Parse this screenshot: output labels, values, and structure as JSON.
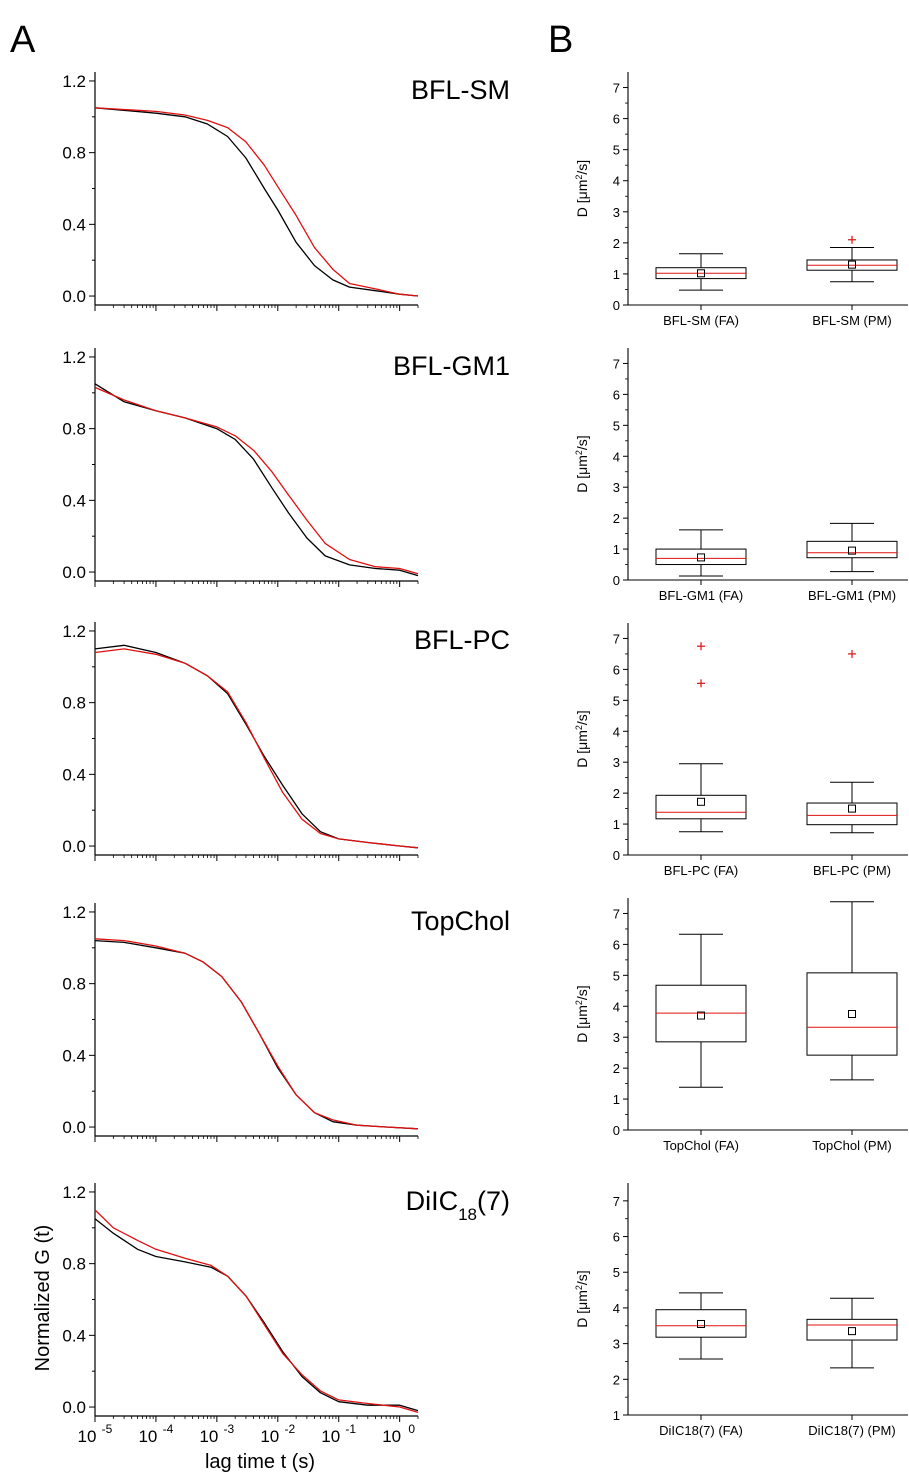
{
  "figure": {
    "panel_a_letter": "A",
    "panel_b_letter": "B",
    "colors": {
      "series_1": "#000000",
      "series_2": "#e01010",
      "median": "#e01010",
      "outlier": "#e01010"
    },
    "a_axes": {
      "ylabel": "Normalized G (t)",
      "xlabel": "lag time t (s)",
      "y_ticks": [
        "0.0",
        "0.4",
        "0.8",
        "1.2"
      ],
      "x_ticks": [
        {
          "base": "10",
          "exp": "-5"
        },
        {
          "base": "10",
          "exp": "-4"
        },
        {
          "base": "10",
          "exp": "-3"
        },
        {
          "base": "10",
          "exp": "-2"
        },
        {
          "base": "10",
          "exp": "-1"
        },
        {
          "base": "10",
          "exp": "0"
        }
      ]
    },
    "b_axes": {
      "ylabel_prefix": "D [μm",
      "ylabel_sup": "2",
      "ylabel_suffix": "/s]"
    }
  },
  "chart_data": [
    {
      "type": "line",
      "panel": "A",
      "label": "BFL-SM",
      "label_sub": "",
      "label_end": "",
      "xscale": "log",
      "xlim": [
        1e-05,
        2
      ],
      "ylim": [
        -0.05,
        1.25
      ],
      "series": [
        {
          "color": "#000000",
          "x": [
            1e-05,
            0.0001,
            0.0003,
            0.0007,
            0.0015,
            0.003,
            0.006,
            0.01,
            0.02,
            0.04,
            0.08,
            0.15,
            0.4,
            1,
            2
          ],
          "y": [
            1.05,
            1.02,
            1.0,
            0.96,
            0.89,
            0.77,
            0.6,
            0.48,
            0.3,
            0.17,
            0.09,
            0.05,
            0.03,
            0.01,
            0.0
          ]
        },
        {
          "color": "#e01010",
          "x": [
            1e-05,
            0.0001,
            0.0003,
            0.0007,
            0.0015,
            0.003,
            0.006,
            0.01,
            0.02,
            0.04,
            0.08,
            0.15,
            0.4,
            1,
            2
          ],
          "y": [
            1.05,
            1.03,
            1.01,
            0.98,
            0.94,
            0.86,
            0.73,
            0.61,
            0.45,
            0.27,
            0.15,
            0.07,
            0.04,
            0.01,
            0.0
          ]
        }
      ]
    },
    {
      "type": "box",
      "panel": "B",
      "ylim": [
        0,
        7.5
      ],
      "yticks": [
        "0",
        "1",
        "2",
        "3",
        "4",
        "5",
        "6",
        "7"
      ],
      "boxes": [
        {
          "category": "BFL-SM (FA)",
          "whisker_low": 0.48,
          "q1": 0.85,
          "median": 1.02,
          "q3": 1.2,
          "whisker_high": 1.65,
          "mean": 1.02,
          "outliers": []
        },
        {
          "category": "BFL-SM (PM)",
          "whisker_low": 0.75,
          "q1": 1.12,
          "median": 1.28,
          "q3": 1.45,
          "whisker_high": 1.85,
          "mean": 1.3,
          "outliers": [
            2.1
          ]
        }
      ]
    },
    {
      "type": "line",
      "panel": "A",
      "label": "BFL-GM1",
      "label_sub": "",
      "label_end": "",
      "xscale": "log",
      "xlim": [
        1e-05,
        2
      ],
      "ylim": [
        -0.05,
        1.25
      ],
      "series": [
        {
          "color": "#000000",
          "x": [
            1e-05,
            3e-05,
            0.0001,
            0.0003,
            0.001,
            0.002,
            0.004,
            0.008,
            0.015,
            0.03,
            0.06,
            0.15,
            0.4,
            1,
            2
          ],
          "y": [
            1.05,
            0.95,
            0.9,
            0.86,
            0.8,
            0.74,
            0.63,
            0.47,
            0.33,
            0.19,
            0.09,
            0.04,
            0.02,
            0.01,
            -0.02
          ]
        },
        {
          "color": "#e01010",
          "x": [
            1e-05,
            3e-05,
            0.0001,
            0.0003,
            0.001,
            0.002,
            0.004,
            0.008,
            0.015,
            0.03,
            0.06,
            0.15,
            0.4,
            1,
            2
          ],
          "y": [
            1.03,
            0.96,
            0.9,
            0.86,
            0.81,
            0.76,
            0.68,
            0.56,
            0.43,
            0.29,
            0.16,
            0.07,
            0.03,
            0.02,
            -0.01
          ]
        }
      ]
    },
    {
      "type": "box",
      "panel": "B",
      "ylim": [
        0,
        7.5
      ],
      "yticks": [
        "0",
        "1",
        "2",
        "3",
        "4",
        "5",
        "6",
        "7"
      ],
      "boxes": [
        {
          "category": "BFL-GM1 (FA)",
          "whisker_low": 0.13,
          "q1": 0.5,
          "median": 0.7,
          "q3": 1.0,
          "whisker_high": 1.62,
          "mean": 0.73,
          "outliers": []
        },
        {
          "category": "BFL-GM1 (PM)",
          "whisker_low": 0.27,
          "q1": 0.72,
          "median": 0.88,
          "q3": 1.25,
          "whisker_high": 1.83,
          "mean": 0.95,
          "outliers": []
        }
      ]
    },
    {
      "type": "line",
      "panel": "A",
      "label": "BFL-PC",
      "label_sub": "",
      "label_end": "",
      "xscale": "log",
      "xlim": [
        1e-05,
        2
      ],
      "ylim": [
        -0.05,
        1.25
      ],
      "series": [
        {
          "color": "#000000",
          "x": [
            1e-05,
            3e-05,
            0.0001,
            0.0003,
            0.0007,
            0.0015,
            0.003,
            0.006,
            0.012,
            0.025,
            0.05,
            0.1,
            0.3,
            1,
            2
          ],
          "y": [
            1.1,
            1.12,
            1.08,
            1.02,
            0.95,
            0.85,
            0.68,
            0.5,
            0.34,
            0.18,
            0.08,
            0.04,
            0.02,
            0.0,
            -0.01
          ]
        },
        {
          "color": "#e01010",
          "x": [
            1e-05,
            3e-05,
            0.0001,
            0.0003,
            0.0007,
            0.0015,
            0.003,
            0.006,
            0.012,
            0.025,
            0.05,
            0.1,
            0.3,
            1,
            2
          ],
          "y": [
            1.08,
            1.1,
            1.07,
            1.02,
            0.95,
            0.86,
            0.69,
            0.49,
            0.3,
            0.15,
            0.07,
            0.04,
            0.02,
            0.0,
            -0.01
          ]
        }
      ]
    },
    {
      "type": "box",
      "panel": "B",
      "ylim": [
        0,
        7.5
      ],
      "yticks": [
        "0",
        "1",
        "2",
        "3",
        "4",
        "5",
        "6",
        "7"
      ],
      "boxes": [
        {
          "category": "BFL-PC (FA)",
          "whisker_low": 0.75,
          "q1": 1.17,
          "median": 1.38,
          "q3": 1.93,
          "whisker_high": 2.95,
          "mean": 1.72,
          "outliers": [
            6.75,
            5.55
          ]
        },
        {
          "category": "BFL-PC (PM)",
          "whisker_low": 0.72,
          "q1": 0.98,
          "median": 1.28,
          "q3": 1.68,
          "whisker_high": 2.35,
          "mean": 1.5,
          "outliers": [
            6.5
          ]
        }
      ]
    },
    {
      "type": "line",
      "panel": "A",
      "label": "TopChol",
      "label_sub": "",
      "label_end": "",
      "xscale": "log",
      "xlim": [
        1e-05,
        2
      ],
      "ylim": [
        -0.05,
        1.25
      ],
      "series": [
        {
          "color": "#000000",
          "x": [
            1e-05,
            3e-05,
            0.0001,
            0.0003,
            0.0006,
            0.0012,
            0.0025,
            0.005,
            0.01,
            0.02,
            0.04,
            0.08,
            0.2,
            0.6,
            2
          ],
          "y": [
            1.04,
            1.03,
            1.0,
            0.97,
            0.92,
            0.84,
            0.7,
            0.52,
            0.33,
            0.18,
            0.08,
            0.03,
            0.01,
            0.0,
            -0.01
          ]
        },
        {
          "color": "#e01010",
          "x": [
            1e-05,
            3e-05,
            0.0001,
            0.0003,
            0.0006,
            0.0012,
            0.0025,
            0.005,
            0.01,
            0.02,
            0.04,
            0.08,
            0.2,
            0.6,
            2
          ],
          "y": [
            1.05,
            1.04,
            1.01,
            0.97,
            0.92,
            0.84,
            0.7,
            0.52,
            0.34,
            0.18,
            0.08,
            0.04,
            0.01,
            0.0,
            -0.01
          ]
        }
      ]
    },
    {
      "type": "box",
      "panel": "B",
      "ylim": [
        0,
        7.5
      ],
      "yticks": [
        "0",
        "1",
        "2",
        "3",
        "4",
        "5",
        "6",
        "7"
      ],
      "boxes": [
        {
          "category": "TopChol (FA)",
          "whisker_low": 1.38,
          "q1": 2.85,
          "median": 3.78,
          "q3": 4.68,
          "whisker_high": 6.33,
          "mean": 3.7,
          "outliers": []
        },
        {
          "category": "TopChol (PM)",
          "whisker_low": 1.62,
          "q1": 2.42,
          "median": 3.32,
          "q3": 5.08,
          "whisker_high": 7.38,
          "mean": 3.75,
          "outliers": []
        }
      ]
    },
    {
      "type": "line",
      "panel": "A",
      "label": "DiIC",
      "label_sub": "18",
      "label_end": "(7)",
      "xscale": "log",
      "xlim": [
        1e-05,
        2
      ],
      "ylim": [
        -0.05,
        1.25
      ],
      "series": [
        {
          "color": "#000000",
          "x": [
            1e-05,
            2e-05,
            5e-05,
            0.0001,
            0.0003,
            0.0008,
            0.0015,
            0.003,
            0.006,
            0.012,
            0.025,
            0.05,
            0.1,
            0.3,
            1,
            2
          ],
          "y": [
            1.05,
            0.97,
            0.88,
            0.84,
            0.81,
            0.78,
            0.73,
            0.62,
            0.47,
            0.31,
            0.17,
            0.08,
            0.03,
            0.01,
            0.01,
            -0.02
          ]
        },
        {
          "color": "#e01010",
          "x": [
            1e-05,
            2e-05,
            5e-05,
            0.0001,
            0.0003,
            0.0008,
            0.0015,
            0.003,
            0.006,
            0.012,
            0.025,
            0.05,
            0.1,
            0.3,
            1,
            2
          ],
          "y": [
            1.1,
            1.0,
            0.93,
            0.88,
            0.83,
            0.79,
            0.73,
            0.62,
            0.46,
            0.3,
            0.18,
            0.09,
            0.04,
            0.02,
            0.0,
            -0.03
          ]
        }
      ]
    },
    {
      "type": "box",
      "panel": "B",
      "ylim": [
        1,
        7.5
      ],
      "yticks": [
        "1",
        "2",
        "3",
        "4",
        "5",
        "6",
        "7"
      ],
      "boxes": [
        {
          "category": "DiIC18(7) (FA)",
          "whisker_low": 2.57,
          "q1": 3.18,
          "median": 3.5,
          "q3": 3.95,
          "whisker_high": 4.42,
          "mean": 3.55,
          "outliers": []
        },
        {
          "category": "DiIC18(7) (PM)",
          "whisker_low": 2.32,
          "q1": 3.1,
          "median": 3.52,
          "q3": 3.68,
          "whisker_high": 4.27,
          "mean": 3.35,
          "outliers": []
        }
      ]
    }
  ]
}
